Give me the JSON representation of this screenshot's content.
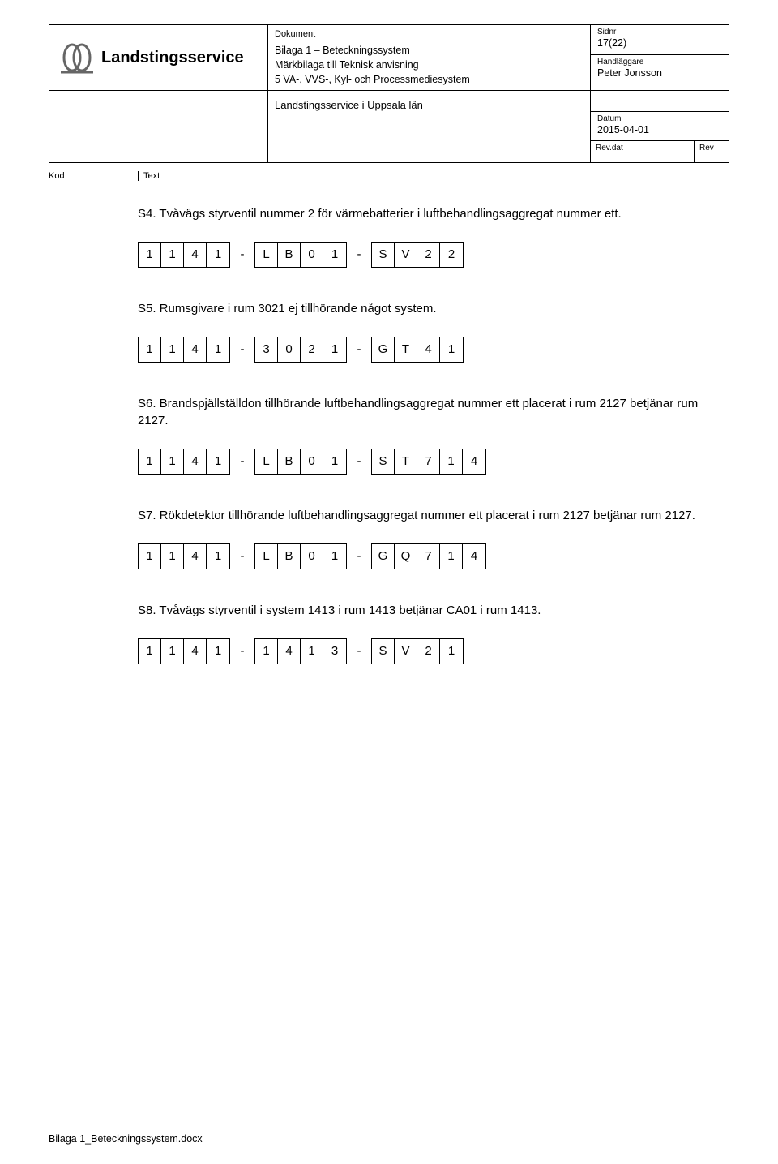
{
  "header": {
    "logo_text": "Landstingsservice",
    "dokument_label": "Dokument",
    "dokument_lines": [
      "Bilaga 1 – Beteckningssystem",
      "Märkbilaga till Teknisk anvisning",
      "5 VA-, VVS-, Kyl- och Processmediesystem"
    ],
    "sidnr_label": "Sidnr",
    "sidnr_value": "17(22)",
    "handlaggare_label": "Handläggare",
    "handlaggare_value": "Peter Jonsson",
    "landsting_line": "Landstingsservice i Uppsala län",
    "datum_label": "Datum",
    "datum_value": "2015-04-01",
    "revdat_label": "Rev.dat",
    "rev_label": "Rev"
  },
  "kodtext": {
    "kod_label": "Kod",
    "text_label": "Text"
  },
  "sections": [
    {
      "text": "S4. Tvåvägs styrventil nummer 2 för värmebatterier i luftbehandlingsaggregat nummer ett.",
      "groups": [
        [
          "1",
          "1",
          "4",
          "1"
        ],
        [
          "L",
          "B",
          "0",
          "1"
        ],
        [
          "S",
          "V",
          "2",
          "2"
        ]
      ]
    },
    {
      "text": "S5. Rumsgivare i rum 3021 ej tillhörande något system.",
      "groups": [
        [
          "1",
          "1",
          "4",
          "1"
        ],
        [
          "3",
          "0",
          "2",
          "1"
        ],
        [
          "G",
          "T",
          "4",
          "1"
        ]
      ]
    },
    {
      "text": "S6. Brandspjällställdon tillhörande luftbehandlingsaggregat nummer ett placerat i rum 2127 betjänar rum 2127.",
      "groups": [
        [
          "1",
          "1",
          "4",
          "1"
        ],
        [
          "L",
          "B",
          "0",
          "1"
        ],
        [
          "S",
          "T",
          "7",
          "1",
          "4"
        ]
      ]
    },
    {
      "text": "S7. Rökdetektor tillhörande luftbehandlingsaggregat nummer ett placerat i rum 2127 betjänar rum 2127.",
      "groups": [
        [
          "1",
          "1",
          "4",
          "1"
        ],
        [
          "L",
          "B",
          "0",
          "1"
        ],
        [
          "G",
          "Q",
          "7",
          "1",
          "4"
        ]
      ]
    },
    {
      "text": "S8. Tvåvägs styrventil i system 1413 i rum 1413 betjänar CA01 i rum 1413.",
      "groups": [
        [
          "1",
          "1",
          "4",
          "1"
        ],
        [
          "1",
          "4",
          "1",
          "3"
        ],
        [
          "S",
          "V",
          "2",
          "1"
        ]
      ]
    }
  ],
  "footer": "Bilaga 1_Beteckningssystem.docx",
  "colors": {
    "text": "#000000",
    "border": "#000000",
    "background": "#ffffff",
    "logo_stroke": "#666666"
  },
  "separator": "-"
}
